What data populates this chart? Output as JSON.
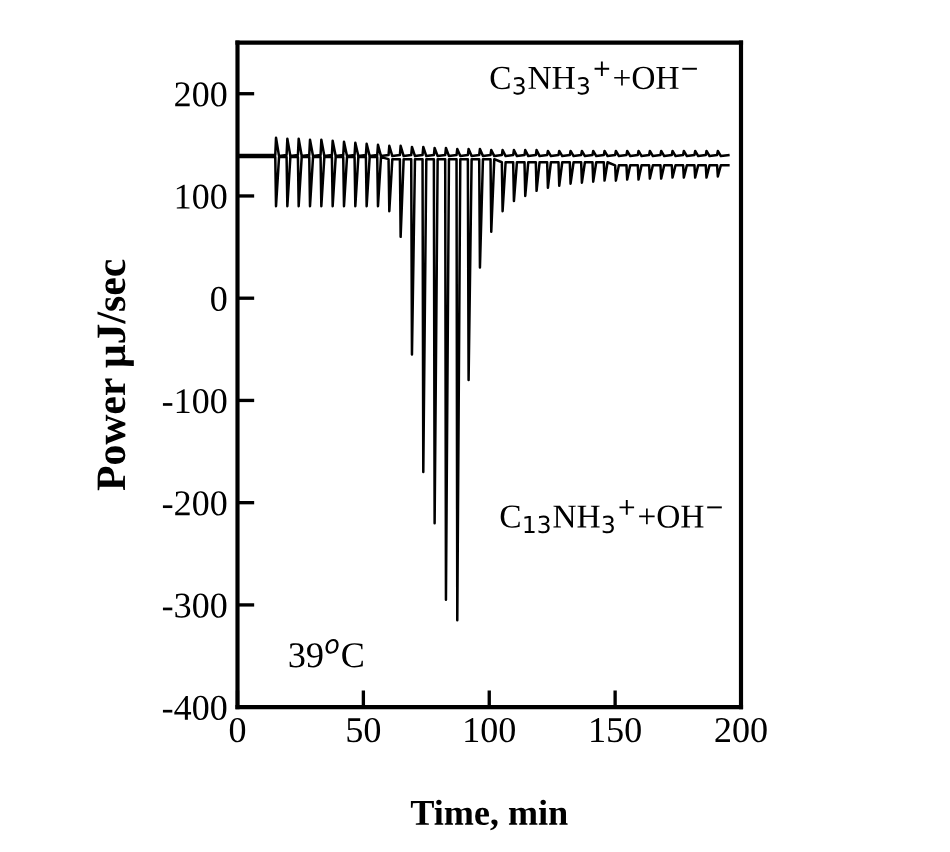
{
  "chart_data": {
    "type": "line",
    "xlabel": "Time, min",
    "ylabel": "Power μJ/sec",
    "xlim": [
      0,
      200
    ],
    "xticks": [
      0,
      50,
      100,
      150,
      200
    ],
    "ylim": [
      -400,
      250
    ],
    "yticks": [
      -400,
      -300,
      -200,
      -100,
      0,
      100,
      200
    ],
    "grid": false,
    "legend": false,
    "marker": "none",
    "line_style": "solid",
    "annotations": [
      "39$^{o}$C"
    ],
    "series": [
      {
        "name": "C$_{3}$NH$_{3}$$^{+}$+OH$^{−}$",
        "color": "#000000",
        "x": [
          0,
          15,
          15.3,
          16.5,
          19.5,
          19.8,
          21,
          24,
          24.3,
          25.5,
          28.5,
          28.8,
          30,
          33,
          33.3,
          34.5,
          37.5,
          37.8,
          39,
          42,
          42.3,
          43.5,
          46.5,
          46.8,
          48,
          51,
          51.3,
          52.5,
          55.5,
          55.8,
          57,
          60,
          60.3,
          61.5,
          64.5,
          64.8,
          66,
          69,
          69.3,
          70.5,
          73.5,
          73.8,
          75,
          78,
          78.3,
          79.5,
          82.5,
          82.8,
          84,
          87,
          87.3,
          88.5,
          91.5,
          91.8,
          93,
          96,
          96.3,
          97.5,
          100.5,
          100.8,
          102,
          105,
          105.3,
          106.5,
          109.5,
          109.8,
          111,
          114,
          114.3,
          115.5,
          118.5,
          118.8,
          120,
          123,
          123.3,
          124.5,
          127.5,
          127.8,
          129,
          132,
          132.3,
          133.5,
          136.5,
          136.8,
          138,
          141,
          141.3,
          142.5,
          145.5,
          145.8,
          147,
          150,
          150.3,
          151.5,
          154.5,
          154.8,
          156,
          159,
          159.3,
          160.5,
          163.5,
          163.8,
          165,
          168,
          168.3,
          169.5,
          172.5,
          172.8,
          174,
          177,
          177.3,
          178.5,
          181.5,
          181.8,
          183,
          186,
          186.3,
          187.5,
          190.5,
          190.8,
          192,
          195
        ],
        "values": [
          140,
          140,
          157,
          139,
          140,
          156,
          139,
          140,
          156,
          139,
          140,
          155,
          139,
          140,
          155,
          139,
          140,
          154,
          139,
          140,
          153,
          139,
          140,
          152,
          139,
          140,
          151,
          139,
          140,
          150,
          139,
          140,
          149,
          139,
          140,
          149,
          139,
          140,
          148,
          139,
          140,
          148,
          139,
          140,
          147,
          139,
          140,
          147,
          139,
          140,
          146,
          139,
          140,
          146,
          139,
          140,
          146,
          139,
          140,
          145,
          139,
          140,
          145,
          139,
          140,
          145,
          139,
          140,
          145,
          139,
          140,
          145,
          139,
          140,
          144,
          139,
          140,
          144,
          139,
          140,
          144,
          139,
          140,
          144,
          139,
          140,
          144,
          139,
          140,
          144,
          139,
          140,
          144,
          139,
          140,
          144,
          139,
          140,
          144,
          139,
          140,
          144,
          139,
          140,
          144,
          139,
          140,
          144,
          139,
          140,
          144,
          139,
          140,
          144,
          139,
          140,
          144,
          139,
          140,
          144,
          139,
          140
        ]
      },
      {
        "name": "C$_{13}$NH$_{3}$$^{+}$+OH$^{−}$",
        "color": "#000000",
        "x": [
          0,
          15,
          15.3,
          16.5,
          19.5,
          19.8,
          21,
          24,
          24.3,
          25.5,
          28.5,
          28.8,
          30,
          33,
          33.3,
          34.5,
          37.5,
          37.8,
          39,
          42,
          42.3,
          43.5,
          46.5,
          46.8,
          48,
          51,
          51.3,
          52.5,
          55.5,
          55.8,
          57,
          60,
          60.3,
          61.5,
          64.5,
          64.8,
          66,
          69,
          69.3,
          70.5,
          73.5,
          73.8,
          75,
          78,
          78.3,
          79.5,
          82.5,
          82.8,
          84,
          87,
          87.3,
          88.5,
          91.5,
          91.8,
          93,
          96,
          96.3,
          97.5,
          100.5,
          100.8,
          102,
          105,
          105.3,
          106.5,
          109.5,
          109.8,
          111,
          114,
          114.3,
          115.5,
          118.5,
          118.8,
          120,
          123,
          123.3,
          124.5,
          127.5,
          127.8,
          129,
          132,
          132.3,
          133.5,
          136.5,
          136.8,
          138,
          141,
          141.3,
          142.5,
          145.5,
          145.8,
          147,
          150,
          150.3,
          151.5,
          154.5,
          154.8,
          156,
          159,
          159.3,
          160.5,
          163.5,
          163.8,
          165,
          168,
          168.3,
          169.5,
          172.5,
          172.8,
          174,
          177,
          177.3,
          178.5,
          181.5,
          181.8,
          183,
          186,
          186.3,
          187.5,
          190.5,
          190.8,
          192,
          195
        ],
        "values": [
          138,
          138,
          90,
          138,
          138,
          90,
          138,
          138,
          90,
          138,
          138,
          90,
          138,
          138,
          90,
          138,
          138,
          90,
          138,
          138,
          90,
          138,
          138,
          90,
          138,
          138,
          90,
          138,
          138,
          90,
          138,
          136,
          85,
          136,
          136,
          60,
          136,
          136,
          -55,
          136,
          136,
          -170,
          136,
          136,
          -220,
          136,
          136,
          -295,
          136,
          136,
          -315,
          136,
          136,
          -80,
          136,
          136,
          30,
          136,
          136,
          65,
          136,
          133,
          85,
          133,
          133,
          95,
          133,
          133,
          100,
          133,
          133,
          105,
          133,
          133,
          108,
          133,
          133,
          110,
          133,
          133,
          112,
          133,
          133,
          113,
          133,
          133,
          114,
          133,
          133,
          115,
          133,
          130,
          115,
          130,
          130,
          116,
          130,
          130,
          116,
          130,
          130,
          117,
          130,
          130,
          117,
          130,
          130,
          118,
          130,
          130,
          118,
          130,
          130,
          118,
          130,
          130,
          118,
          130,
          130,
          119,
          130,
          130
        ]
      }
    ]
  }
}
